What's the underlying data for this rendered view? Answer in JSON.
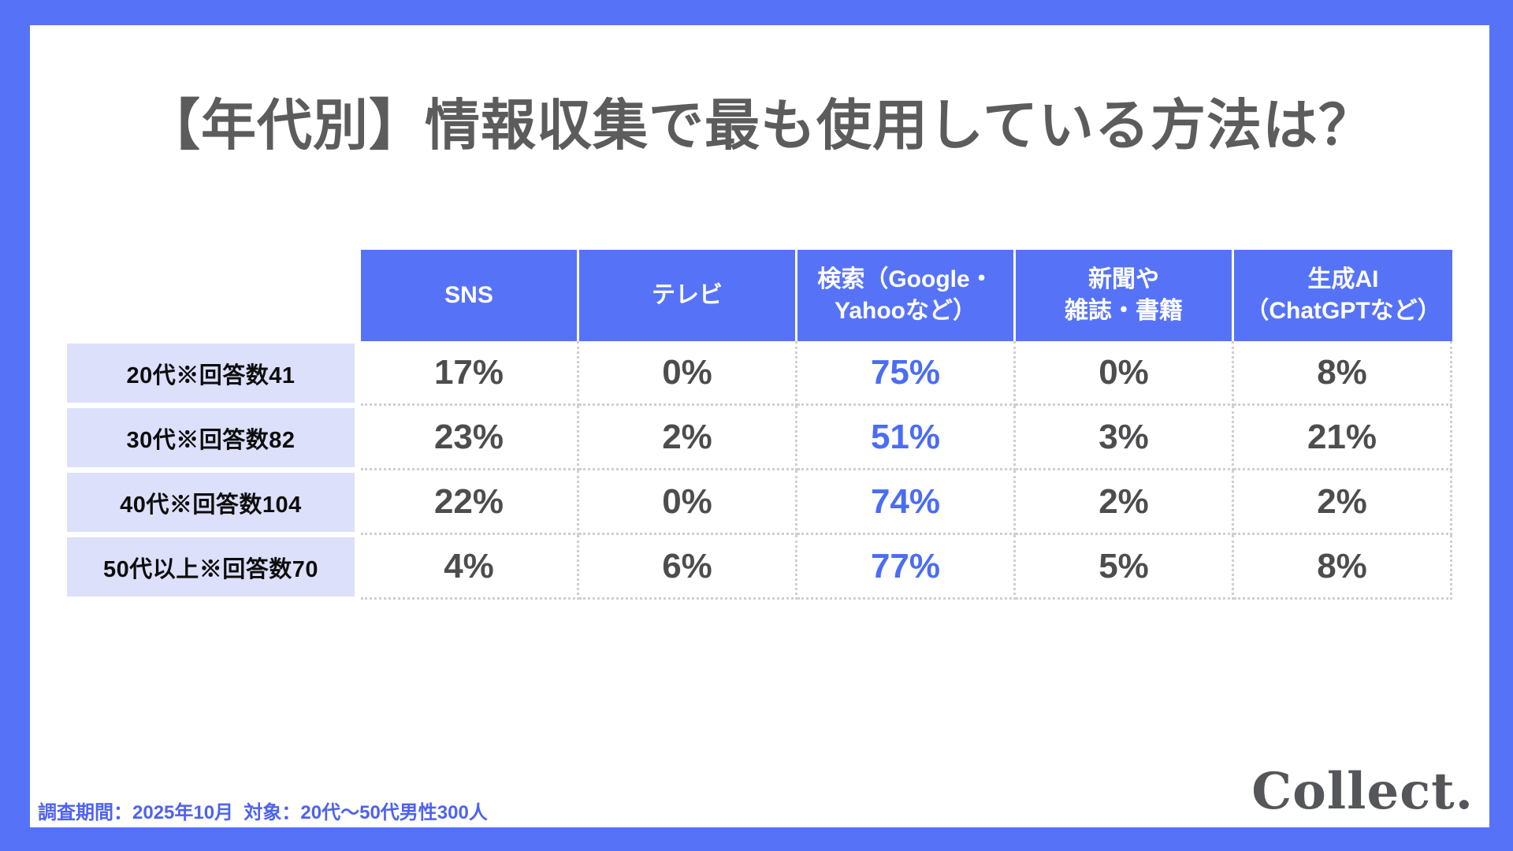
{
  "page": {
    "title": "【年代別】情報収集で最も使用している方法は？",
    "footer_note": "調査期間：2025年10月  対象：20代〜50代男性300人",
    "logo_text": "Collect.",
    "colors": {
      "brand_blue": "#5673F8",
      "row_label_bg": "#DDE0FA",
      "highlight_value_blue": "#4B6CF6",
      "value_gray": "#4D4D4F",
      "title_gray": "#5C5C5C"
    }
  },
  "chart_data": {
    "type": "table",
    "title": "【年代別】情報収集で最も使用している方法は？",
    "columns": [
      "SNS",
      "テレビ",
      "検索（Google・\nYahooなど）",
      "新聞や\n雑誌・書籍",
      "生成AI\n（ChatGPTなど）"
    ],
    "highlighted_column_index": 2,
    "rows": [
      {
        "label": "20代※回答数41",
        "values": [
          "17%",
          "0%",
          "75%",
          "0%",
          "8%"
        ]
      },
      {
        "label": "30代※回答数82",
        "values": [
          "23%",
          "2%",
          "51%",
          "3%",
          "21%"
        ]
      },
      {
        "label": "40代※回答数104",
        "values": [
          "22%",
          "0%",
          "74%",
          "2%",
          "2%"
        ]
      },
      {
        "label": "50代以上※回答数70",
        "values": [
          "4%",
          "6%",
          "77%",
          "5%",
          "8%"
        ]
      }
    ]
  }
}
